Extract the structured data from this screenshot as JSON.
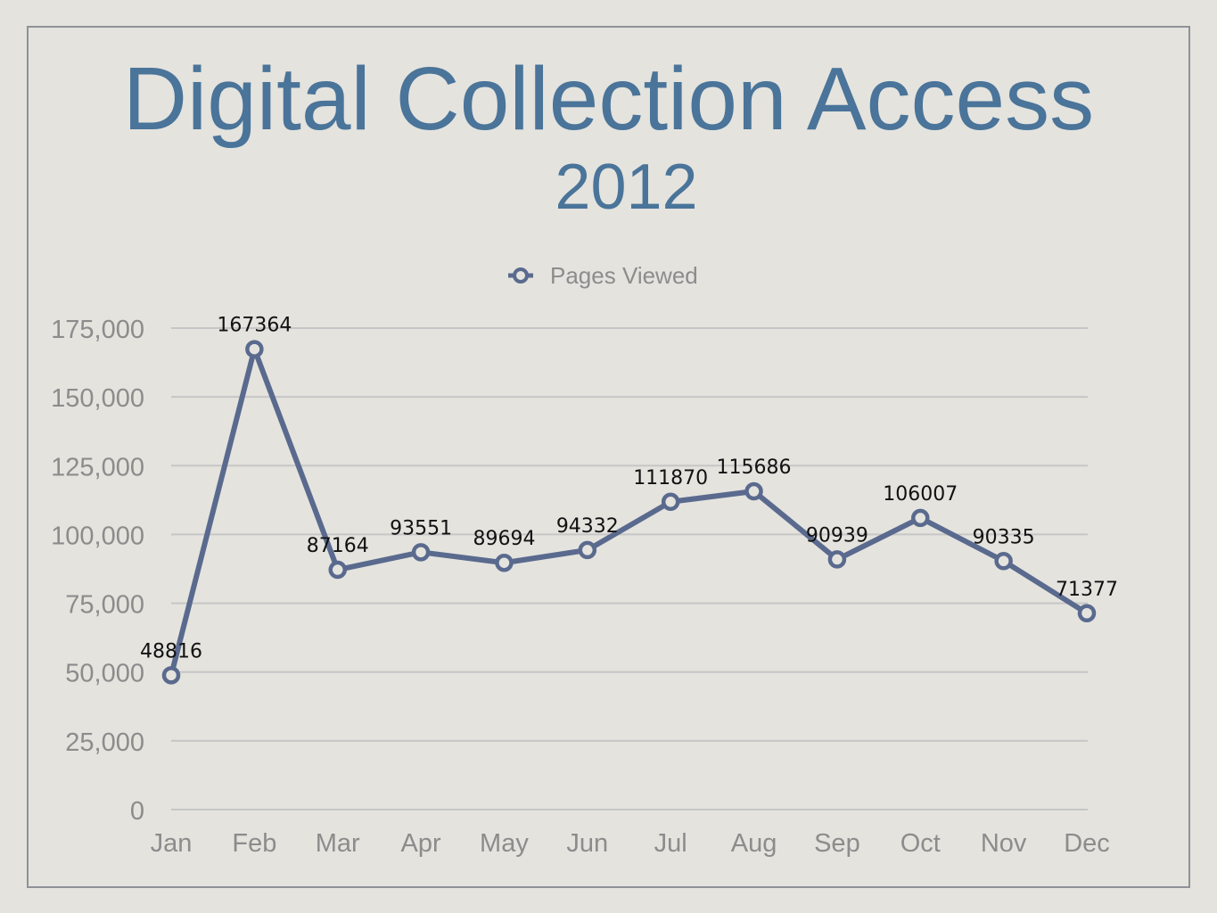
{
  "slide": {
    "title": "Digital Collection Access",
    "subtitle": "2012"
  },
  "colors": {
    "title": "#4a7499",
    "series_line": "#5a6a8e",
    "gridline": "#c6c6c6",
    "tick_text": "#8c8c8c",
    "background": "#e4e3de",
    "frame": "#8e9298"
  },
  "chart_data": {
    "type": "line",
    "title": "Digital Collection Access",
    "subtitle": "2012",
    "categories": [
      "Jan",
      "Feb",
      "Mar",
      "Apr",
      "May",
      "Jun",
      "Jul",
      "Aug",
      "Sep",
      "Oct",
      "Nov",
      "Dec"
    ],
    "series": [
      {
        "name": "Pages Viewed",
        "values": [
          48816,
          167364,
          87164,
          93551,
          89694,
          94332,
          111870,
          115686,
          90939,
          106007,
          90335,
          71377
        ],
        "labels": [
          "48816",
          "167364",
          "87164",
          "93551",
          "89694",
          "94332",
          "111870",
          "115686",
          "90939",
          "106007",
          "90335",
          "71377"
        ],
        "marker": "hollow-circle"
      }
    ],
    "ylim": [
      0,
      175000
    ],
    "yticks": [
      0,
      25000,
      50000,
      75000,
      100000,
      125000,
      150000,
      175000
    ],
    "ytick_labels": [
      "0",
      "25,000",
      "50,000",
      "75,000",
      "100,000",
      "125,000",
      "150,000",
      "175,000"
    ],
    "xlabel": "",
    "ylabel": "",
    "grid": "horizontal",
    "legend_position": "top-center"
  }
}
